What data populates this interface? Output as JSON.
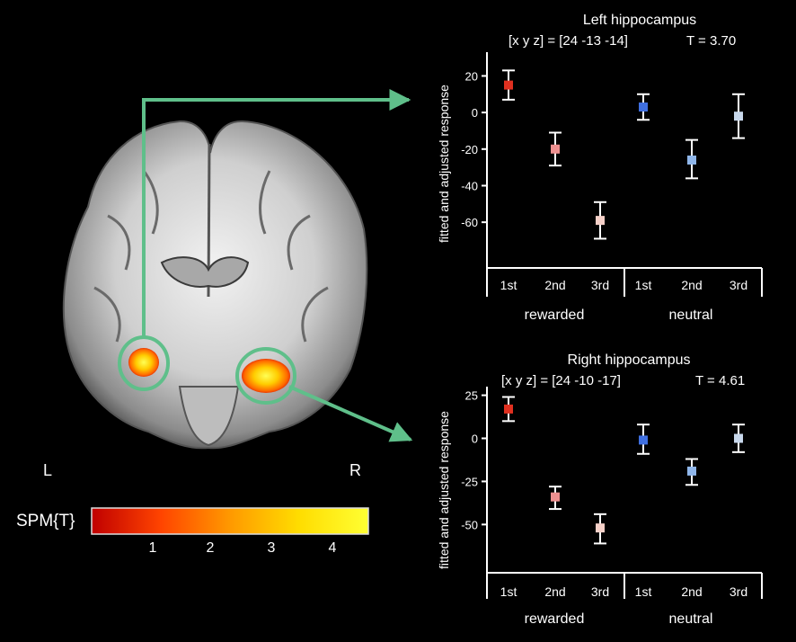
{
  "brain": {
    "left_label": "L",
    "right_label": "R",
    "colorbar": {
      "label": "SPM{T}",
      "ticks": [
        "1",
        "2",
        "3",
        "4"
      ],
      "colors": [
        "#c00000",
        "#ff4400",
        "#ff9900",
        "#ffdd00",
        "#ffff33"
      ]
    },
    "arrow_color": "#5fbf8a"
  },
  "chart_data": [
    {
      "type": "scatter",
      "title": "Left hippocampus",
      "subtitle": "[x y z] = [24 -13 -14]",
      "stat": "T = 3.70",
      "ylabel": "fitted and adjusted response",
      "ylim": [
        -85,
        33
      ],
      "yticks": [
        20,
        0,
        -20,
        -40,
        -60
      ],
      "ytick_labels": [
        "20",
        "0",
        "-20",
        "-40",
        "-60"
      ],
      "categories": [
        "1st",
        "2nd",
        "3rd",
        "1st",
        "2nd",
        "3rd"
      ],
      "groups": [
        {
          "label": "rewarded",
          "span": [
            0,
            2
          ]
        },
        {
          "label": "neutral",
          "span": [
            3,
            5
          ]
        }
      ],
      "values": [
        15,
        -20,
        -59,
        3,
        -26,
        -2
      ],
      "err_low": [
        7,
        -29,
        -69,
        -4,
        -36,
        -14
      ],
      "err_high": [
        23,
        -11,
        -49,
        10,
        -15,
        10
      ],
      "colors": [
        "#e03020",
        "#ee9090",
        "#f5d0c8",
        "#3f6fe0",
        "#8fb6ea",
        "#c8d8ec"
      ]
    },
    {
      "type": "scatter",
      "title": "Right hippocampus",
      "subtitle": "[x y z] = [24 -10 -17]",
      "stat": "T = 4.61",
      "ylabel": "fitted and adjusted response",
      "ylim": [
        -78,
        30
      ],
      "yticks": [
        25,
        0,
        -25,
        -50
      ],
      "ytick_labels": [
        "25",
        "0",
        "-25",
        "-50"
      ],
      "categories": [
        "1st",
        "2nd",
        "3rd",
        "1st",
        "2nd",
        "3rd"
      ],
      "groups": [
        {
          "label": "rewarded",
          "span": [
            0,
            2
          ]
        },
        {
          "label": "neutral",
          "span": [
            3,
            5
          ]
        }
      ],
      "values": [
        17,
        -34,
        -52,
        -1,
        -19,
        0
      ],
      "err_low": [
        10,
        -41,
        -61,
        -9,
        -27,
        -8
      ],
      "err_high": [
        24,
        -28,
        -44,
        8,
        -12,
        8
      ],
      "colors": [
        "#e03020",
        "#ee9090",
        "#f5d0c8",
        "#3f6fe0",
        "#8fb6ea",
        "#c8d8ec"
      ]
    }
  ]
}
